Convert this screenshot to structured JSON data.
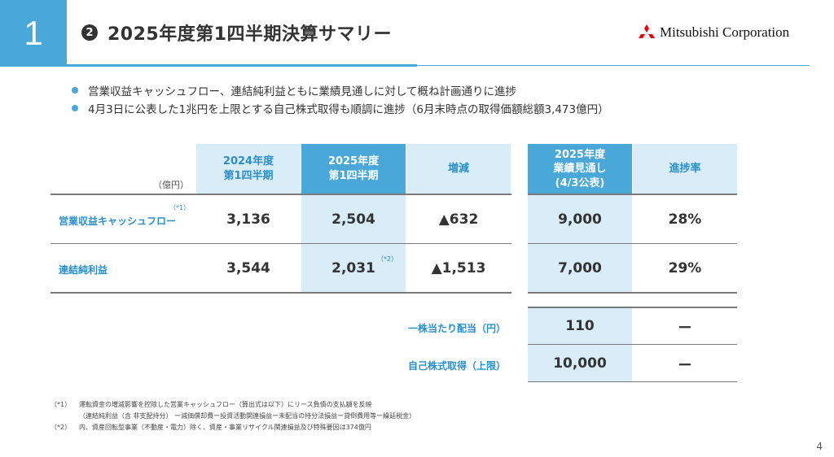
{
  "section_number": "1",
  "header": {
    "circle_number": "2",
    "title": "2025年度第1四半期決算サマリー"
  },
  "logo": {
    "text": "Mitsubishi Corporation",
    "icon": "three-diamonds-icon",
    "color": "#e60012"
  },
  "bullets": [
    "営業収益キャッシュフロー、連結純利益ともに業績見通しに対して概ね計画通りに進捗",
    "4月3日に公表した1兆円を上限とする自己株式取得も順調に進捗（6月末時点の取得価額総額3,473億円）"
  ],
  "table": {
    "unit": "（億円）",
    "headers": {
      "fy2024_q1": [
        "2024年度",
        "第1四半期"
      ],
      "fy2025_q1": [
        "2025年度",
        "第1四半期"
      ],
      "change": "増減",
      "forecast": [
        "2025年度",
        "業績見通し",
        "(4/3公表)"
      ],
      "progress": "進捗率"
    },
    "rows": [
      {
        "label": "営業収益キャッシュフロー",
        "note": "（*1）",
        "fy2024_q1": "3,136",
        "fy2025_q1": "2,504",
        "change": "▲632",
        "forecast": "9,000",
        "progress": "28%"
      },
      {
        "label": "連結純利益",
        "note": "（*2）",
        "fy2024_q1": "3,544",
        "fy2025_q1": "2,031",
        "change": "▲1,513",
        "forecast": "7,000",
        "progress": "29%"
      }
    ],
    "extra_rows": [
      {
        "label": "一株当たり配当（円）",
        "forecast": "110",
        "progress": "ー"
      },
      {
        "label": "自己株式取得（上限）",
        "forecast": "10,000",
        "progress": "ー"
      }
    ]
  },
  "footnotes": [
    {
      "mark": "（*1）",
      "text": "運転資金の増減影響を控除した営業キャッシュフロー（算出式は以下）にリース負債の支払額を反映"
    },
    {
      "mark": "",
      "text": "（連結純利益（含 非支配持分） ー減価償却費ー投資活動関連損益ー未配当の持分法損益ー貸倒費用等ー繰延税金）"
    },
    {
      "mark": "（*2）",
      "text": "内、資産回転型事業（不動産・電力）除く、資産・事業リサイクル関連損益及び特殊要因は374億円"
    }
  ],
  "page_number": "4",
  "colors": {
    "accent": "#4aa8d8",
    "light_tint": "#d9edf8",
    "label_blue": "#2b8fc8"
  }
}
